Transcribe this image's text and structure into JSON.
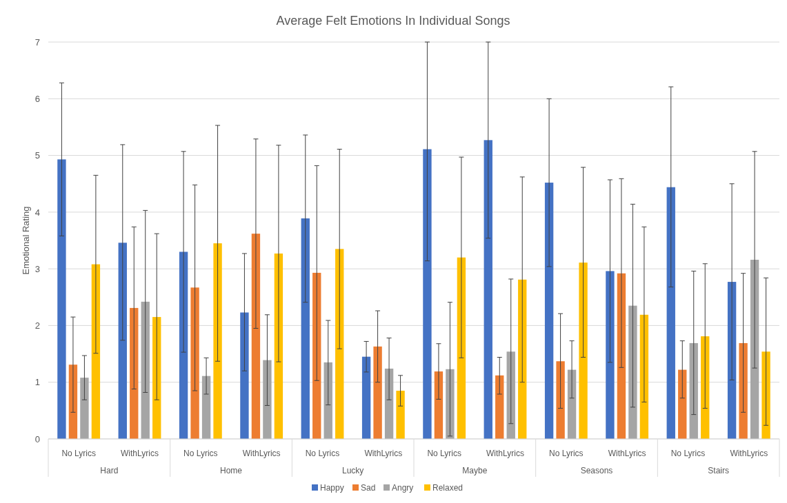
{
  "chart_data": {
    "type": "bar",
    "title": "Average Felt Emotions In Individual Songs",
    "ylabel": "Emotional Rating",
    "categories": [
      "No Lyrics",
      "WithLyrics",
      "No Lyrics",
      "WithLyrics",
      "No Lyrics",
      "WithLyrics",
      "No Lyrics",
      "WithLyrics",
      "No Lyrics",
      "WithLyrics",
      "No Lyrics",
      "WithLyrics"
    ],
    "annotations": [
      "Hard",
      "Home",
      "Lucky",
      "Maybe",
      "Seasons",
      "Stairs"
    ],
    "series": [
      {
        "name": "Happy",
        "color": "#4472c4",
        "values": [
          4.93,
          3.46,
          3.3,
          2.23,
          3.89,
          1.45,
          5.11,
          5.27,
          4.52,
          2.96,
          4.44,
          2.77
        ],
        "errors": [
          [
            3.58,
            6.28
          ],
          [
            1.74,
            5.19
          ],
          [
            1.53,
            5.07
          ],
          [
            1.2,
            3.27
          ],
          [
            2.41,
            5.36
          ],
          [
            1.18,
            1.72
          ],
          [
            3.14,
            7
          ],
          [
            3.54,
            7
          ],
          [
            3.04,
            6
          ],
          [
            1.35,
            4.57
          ],
          [
            2.68,
            6.21
          ],
          [
            1.04,
            4.5
          ]
        ]
      },
      {
        "name": "Sad",
        "color": "#ed7d31",
        "values": [
          1.31,
          2.31,
          2.67,
          3.62,
          2.93,
          1.63,
          1.19,
          1.12,
          1.37,
          2.92,
          1.22,
          1.69
        ],
        "errors": [
          [
            0.47,
            2.15
          ],
          [
            0.88,
            3.74
          ],
          [
            0.85,
            4.48
          ],
          [
            1.95,
            5.29
          ],
          [
            1.03,
            4.82
          ],
          [
            1.0,
            2.26
          ],
          [
            0.7,
            1.68
          ],
          [
            0.79,
            1.44
          ],
          [
            0.54,
            2.21
          ],
          [
            1.26,
            4.59
          ],
          [
            0.72,
            1.73
          ],
          [
            0.47,
            2.92
          ]
        ]
      },
      {
        "name": "Angry",
        "color": "#a5a5a5",
        "values": [
          1.08,
          2.42,
          1.11,
          1.39,
          1.35,
          1.24,
          1.23,
          1.54,
          1.22,
          2.35,
          1.69,
          3.16
        ],
        "errors": [
          [
            0.69,
            1.47
          ],
          [
            0.82,
            4.03
          ],
          [
            0.79,
            1.43
          ],
          [
            0.59,
            2.19
          ],
          [
            0.6,
            2.09
          ],
          [
            0.69,
            1.78
          ],
          [
            0.05,
            2.41
          ],
          [
            0.27,
            2.82
          ],
          [
            0.72,
            1.73
          ],
          [
            0.56,
            4.14
          ],
          [
            0.43,
            2.96
          ],
          [
            1.25,
            5.07
          ]
        ]
      },
      {
        "name": "Relaxed",
        "color": "#ffc000",
        "values": [
          3.08,
          2.15,
          3.45,
          3.27,
          3.35,
          0.85,
          3.2,
          2.81,
          3.11,
          2.19,
          1.81,
          1.54
        ],
        "errors": [
          [
            1.51,
            4.65
          ],
          [
            0.69,
            3.62
          ],
          [
            1.37,
            5.53
          ],
          [
            1.36,
            5.18
          ],
          [
            1.59,
            5.11
          ],
          [
            0.58,
            1.12
          ],
          [
            1.43,
            4.97
          ],
          [
            1.0,
            4.62
          ],
          [
            1.44,
            4.79
          ],
          [
            0.65,
            3.74
          ],
          [
            0.54,
            3.09
          ],
          [
            0.24,
            2.84
          ]
        ]
      }
    ],
    "ylim": [
      0,
      7
    ],
    "yticks": [
      0,
      1,
      2,
      3,
      4,
      5,
      6,
      7
    ],
    "grid": "y",
    "legend": "bottom"
  }
}
